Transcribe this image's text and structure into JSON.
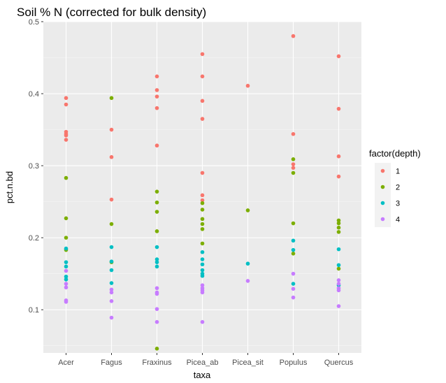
{
  "chart_data": {
    "type": "scatter",
    "title": "Soil % N (corrected for bulk density)",
    "xlabel": "taxa",
    "ylabel": "pct.n.bd",
    "categories": [
      "Acer",
      "Fagus",
      "Fraxinus",
      "Picea_ab",
      "Picea_sit",
      "Populus",
      "Quercus"
    ],
    "ylim": [
      0.04,
      0.5
    ],
    "yticks": [
      "0.1",
      "0.2",
      "0.3",
      "0.4",
      "0.5"
    ],
    "ytick_values": [
      0.1,
      0.2,
      0.3,
      0.4,
      0.5
    ],
    "grid": true,
    "background": "#ebebeb",
    "legend": {
      "title": "factor(depth)",
      "position": "right",
      "entries": [
        {
          "label": "1",
          "color": "#F8766D"
        },
        {
          "label": "2",
          "color": "#7CAE00"
        },
        {
          "label": "3",
          "color": "#00BFC4"
        },
        {
          "label": "4",
          "color": "#C77CFF"
        }
      ]
    },
    "series": [
      {
        "name": "1",
        "color": "#F8766D",
        "points": [
          [
            "Acer",
            0.394
          ],
          [
            "Acer",
            0.385
          ],
          [
            "Acer",
            0.347
          ],
          [
            "Acer",
            0.344
          ],
          [
            "Acer",
            0.342
          ],
          [
            "Acer",
            0.336
          ],
          [
            "Fagus",
            0.35
          ],
          [
            "Fagus",
            0.312
          ],
          [
            "Fagus",
            0.253
          ],
          [
            "Fraxinus",
            0.424
          ],
          [
            "Fraxinus",
            0.405
          ],
          [
            "Fraxinus",
            0.396
          ],
          [
            "Fraxinus",
            0.38
          ],
          [
            "Fraxinus",
            0.328
          ],
          [
            "Picea_ab",
            0.455
          ],
          [
            "Picea_ab",
            0.424
          ],
          [
            "Picea_ab",
            0.39
          ],
          [
            "Picea_ab",
            0.365
          ],
          [
            "Picea_ab",
            0.29
          ],
          [
            "Picea_ab",
            0.259
          ],
          [
            "Picea_ab",
            0.252
          ],
          [
            "Picea_sit",
            0.411
          ],
          [
            "Populus",
            0.48
          ],
          [
            "Populus",
            0.344
          ],
          [
            "Populus",
            0.302
          ],
          [
            "Populus",
            0.297
          ],
          [
            "Quercus",
            0.452
          ],
          [
            "Quercus",
            0.379
          ],
          [
            "Quercus",
            0.313
          ],
          [
            "Quercus",
            0.285
          ]
        ]
      },
      {
        "name": "2",
        "color": "#7CAE00",
        "points": [
          [
            "Acer",
            0.283
          ],
          [
            "Acer",
            0.227
          ],
          [
            "Acer",
            0.2
          ],
          [
            "Acer",
            0.183
          ],
          [
            "Fagus",
            0.394
          ],
          [
            "Fagus",
            0.219
          ],
          [
            "Fagus",
            0.166
          ],
          [
            "Fraxinus",
            0.264
          ],
          [
            "Fraxinus",
            0.249
          ],
          [
            "Fraxinus",
            0.236
          ],
          [
            "Fraxinus",
            0.209
          ],
          [
            "Fraxinus",
            0.046
          ],
          [
            "Picea_ab",
            0.248
          ],
          [
            "Picea_ab",
            0.239
          ],
          [
            "Picea_ab",
            0.226
          ],
          [
            "Picea_ab",
            0.219
          ],
          [
            "Picea_ab",
            0.212
          ],
          [
            "Picea_ab",
            0.192
          ],
          [
            "Picea_sit",
            0.238
          ],
          [
            "Populus",
            0.309
          ],
          [
            "Populus",
            0.29
          ],
          [
            "Populus",
            0.22
          ],
          [
            "Populus",
            0.178
          ],
          [
            "Quercus",
            0.224
          ],
          [
            "Quercus",
            0.22
          ],
          [
            "Quercus",
            0.214
          ],
          [
            "Quercus",
            0.208
          ],
          [
            "Quercus",
            0.157
          ]
        ]
      },
      {
        "name": "3",
        "color": "#00BFC4",
        "points": [
          [
            "Acer",
            0.185
          ],
          [
            "Acer",
            0.166
          ],
          [
            "Acer",
            0.16
          ],
          [
            "Acer",
            0.146
          ],
          [
            "Acer",
            0.142
          ],
          [
            "Fagus",
            0.187
          ],
          [
            "Fagus",
            0.167
          ],
          [
            "Fagus",
            0.155
          ],
          [
            "Fagus",
            0.137
          ],
          [
            "Fraxinus",
            0.187
          ],
          [
            "Fraxinus",
            0.17
          ],
          [
            "Fraxinus",
            0.166
          ],
          [
            "Fraxinus",
            0.16
          ],
          [
            "Picea_ab",
            0.18
          ],
          [
            "Picea_ab",
            0.17
          ],
          [
            "Picea_ab",
            0.163
          ],
          [
            "Picea_ab",
            0.155
          ],
          [
            "Picea_ab",
            0.15
          ],
          [
            "Picea_ab",
            0.147
          ],
          [
            "Picea_sit",
            0.164
          ],
          [
            "Populus",
            0.196
          ],
          [
            "Populus",
            0.183
          ],
          [
            "Populus",
            0.136
          ],
          [
            "Quercus",
            0.184
          ],
          [
            "Quercus",
            0.162
          ],
          [
            "Quercus",
            0.134
          ]
        ]
      },
      {
        "name": "4",
        "color": "#C77CFF",
        "points": [
          [
            "Acer",
            0.154
          ],
          [
            "Acer",
            0.136
          ],
          [
            "Acer",
            0.131
          ],
          [
            "Acer",
            0.113
          ],
          [
            "Acer",
            0.111
          ],
          [
            "Fagus",
            0.128
          ],
          [
            "Fagus",
            0.124
          ],
          [
            "Fagus",
            0.112
          ],
          [
            "Fagus",
            0.089
          ],
          [
            "Fraxinus",
            0.13
          ],
          [
            "Fraxinus",
            0.124
          ],
          [
            "Fraxinus",
            0.122
          ],
          [
            "Fraxinus",
            0.101
          ],
          [
            "Fraxinus",
            0.083
          ],
          [
            "Picea_ab",
            0.134
          ],
          [
            "Picea_ab",
            0.13
          ],
          [
            "Picea_ab",
            0.127
          ],
          [
            "Picea_ab",
            0.124
          ],
          [
            "Picea_ab",
            0.083
          ],
          [
            "Picea_sit",
            0.14
          ],
          [
            "Populus",
            0.15
          ],
          [
            "Populus",
            0.129
          ],
          [
            "Populus",
            0.117
          ],
          [
            "Quercus",
            0.141
          ],
          [
            "Quercus",
            0.136
          ],
          [
            "Quercus",
            0.13
          ],
          [
            "Quercus",
            0.127
          ],
          [
            "Quercus",
            0.105
          ]
        ]
      }
    ]
  }
}
